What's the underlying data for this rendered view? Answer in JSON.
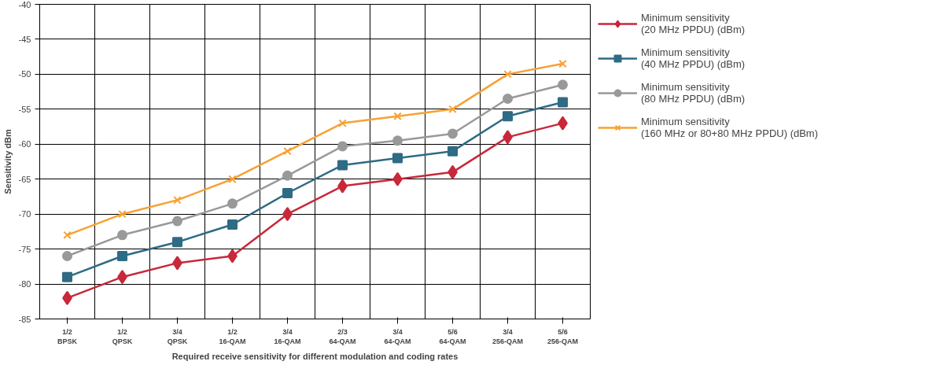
{
  "chart_data": {
    "type": "line",
    "xlabel": "Required receive sensitivity for different modulation and coding rates",
    "ylabel": "Sensitivity dBm",
    "categories": [
      "1/2\nBPSK",
      "1/2\nQPSK",
      "3/4\nQPSK",
      "1/2\n16-QAM",
      "3/4\n16-QAM",
      "2/3\n64-QAM",
      "3/4\n64-QAM",
      "5/6\n64-QAM",
      "3/4\n256-QAM",
      "5/6\n256-QAM"
    ],
    "series": [
      {
        "name": "Minimum sensitivity\n(20 MHz PPDU) (dBm)",
        "color": "#c8283a",
        "marker": "diamond",
        "values": [
          -82,
          -79,
          -77,
          -76,
          -70,
          -66,
          -65,
          -64,
          -59,
          -57
        ]
      },
      {
        "name": "Minimum sensitivity\n(40 MHz PPDU) (dBm)",
        "color": "#2e6b85",
        "marker": "square",
        "values": [
          -79,
          -76,
          -74,
          -71.5,
          -67,
          -63,
          -62,
          -61,
          -56,
          -54
        ]
      },
      {
        "name": "Minimum sensitivity\n(80 MHz PPDU) (dBm)",
        "color": "#999999",
        "marker": "circle",
        "values": [
          -76,
          -73,
          -71,
          -68.5,
          -64.5,
          -60.3,
          -59.5,
          -58.5,
          -53.5,
          -51.5
        ]
      },
      {
        "name": "Minimum sensitivity\n(160 MHz or 80+80 MHz PPDU) (dBm)",
        "color": "#f7a133",
        "marker": "x",
        "values": [
          -73,
          -70,
          -68,
          -65,
          -61,
          -57,
          -56,
          -55,
          -50,
          -48.5
        ]
      }
    ],
    "ylim": [
      -85,
      -40
    ],
    "yticks": [
      -85,
      -80,
      -75,
      -70,
      -65,
      -60,
      -55,
      -50,
      -45,
      -40
    ],
    "grid": true,
    "legend": "right"
  }
}
